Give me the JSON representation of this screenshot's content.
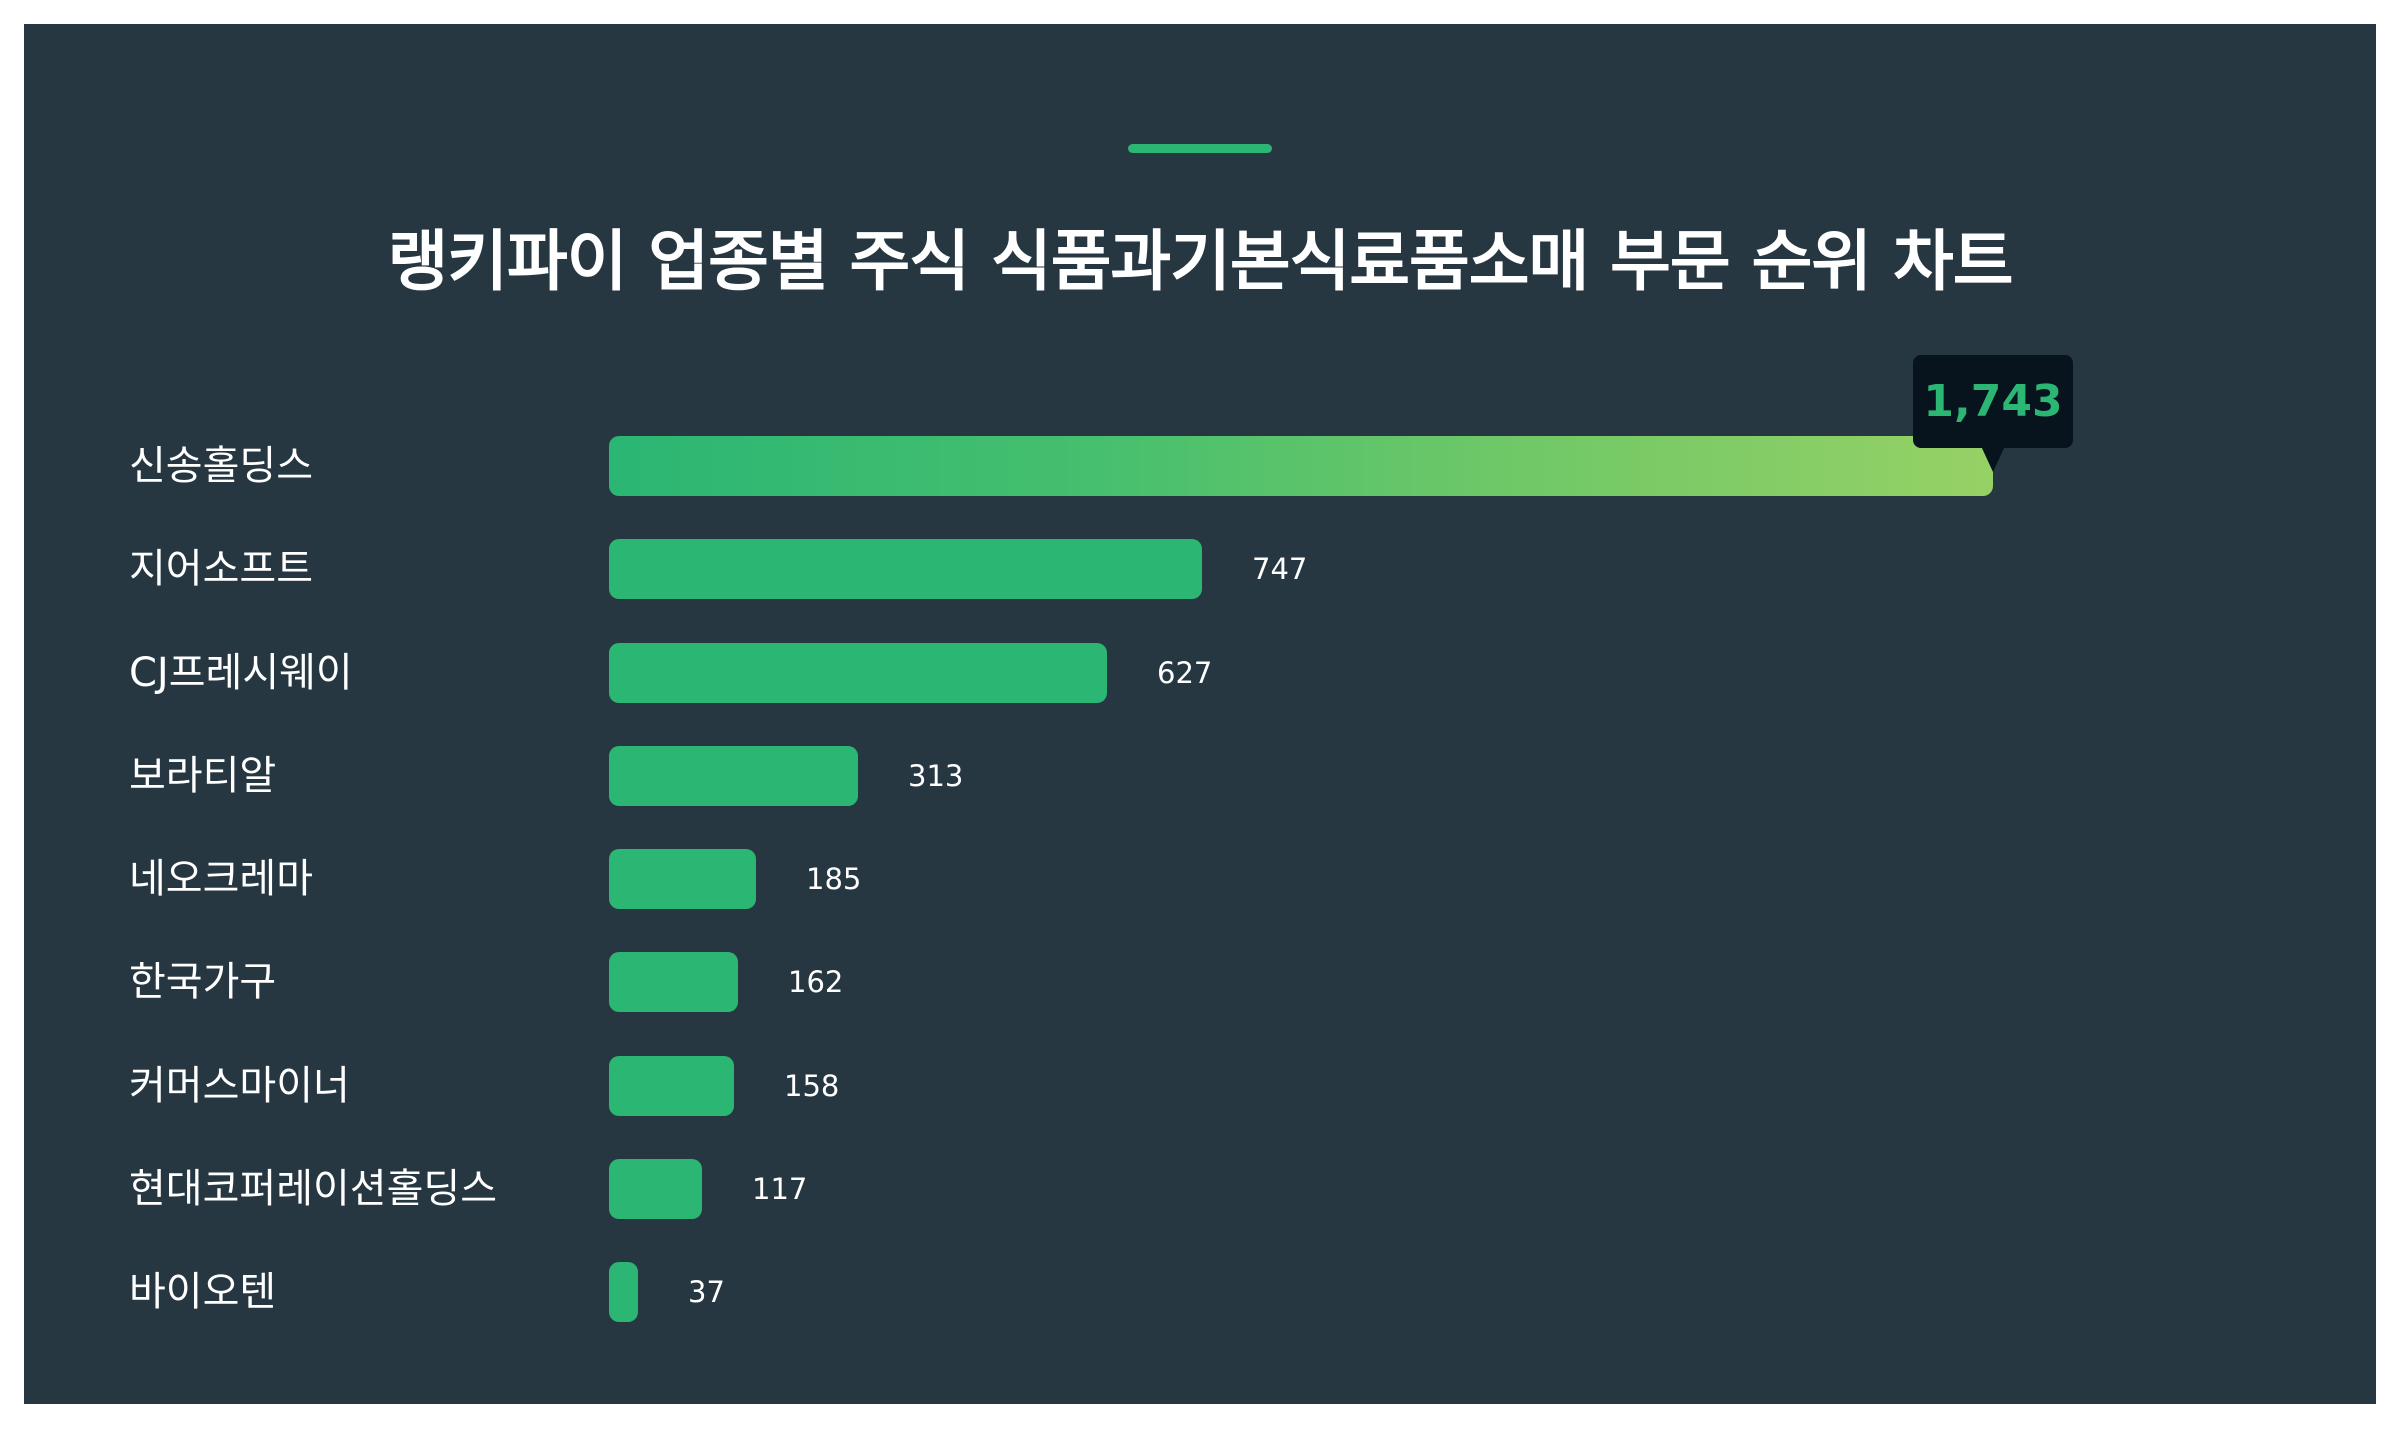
{
  "header": {
    "title": "랭키파이 업종별 주식 식품과기본식료품소매 부문 순위 차트"
  },
  "colors": {
    "background": "#263742",
    "accent": "#2bb673",
    "bar": "#2bb673",
    "bar_gradient_end": "#96d165",
    "tooltip_bg": "#07131d",
    "text": "#ffffff"
  },
  "tooltip": {
    "value": "1,743"
  },
  "rows": [
    {
      "label": "신송홀딩스",
      "value": "1,743"
    },
    {
      "label": "지어소프트",
      "value": "747"
    },
    {
      "label": "CJ프레시웨이",
      "value": "627"
    },
    {
      "label": "보라티알",
      "value": "313"
    },
    {
      "label": "네오크레마",
      "value": "185"
    },
    {
      "label": "한국가구",
      "value": "162"
    },
    {
      "label": "커머스마이너",
      "value": "158"
    },
    {
      "label": "현대코퍼레이션홀딩스",
      "value": "117"
    },
    {
      "label": "바이오텐",
      "value": "37"
    }
  ],
  "chart_data": {
    "type": "bar",
    "orientation": "horizontal",
    "title": "랭키파이 업종별 주식 식품과기본식료품소매 부문 순위 차트",
    "categories": [
      "신송홀딩스",
      "지어소프트",
      "CJ프레시웨이",
      "보라티알",
      "네오크레마",
      "한국가구",
      "커머스마이너",
      "현대코퍼레이션홀딩스",
      "바이오텐"
    ],
    "values": [
      1743,
      747,
      627,
      313,
      185,
      162,
      158,
      117,
      37
    ],
    "xlabel": "",
    "ylabel": "",
    "grid": false,
    "legend": "none",
    "highlight": {
      "category": "신송홀딩스",
      "label": "1,743"
    }
  }
}
